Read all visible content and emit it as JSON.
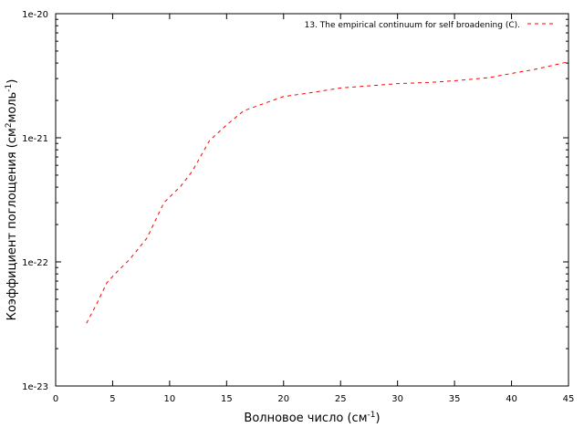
{
  "chart_data": {
    "type": "line",
    "title": "",
    "xlabel": {
      "text": "Волновое число (см",
      "sup": "-1",
      "suffix": ")"
    },
    "ylabel": {
      "text": "Коэффициент поглощения (см",
      "sup1": "2",
      "mid": "моль",
      "sup2": "-1",
      "suffix": ")"
    },
    "xlim": [
      0,
      45
    ],
    "ylim": [
      1e-23,
      1e-20
    ],
    "yscale": "log",
    "grid": false,
    "legend_position": "top-right",
    "x_ticks": [
      0,
      5,
      10,
      15,
      20,
      25,
      30,
      35,
      40,
      45
    ],
    "x_tick_labels": [
      "0",
      "5",
      "10",
      "15",
      "20",
      "25",
      "30",
      "35",
      "40",
      "45"
    ],
    "y_ticks": [
      1e-23,
      1e-22,
      1e-21,
      1e-20
    ],
    "y_tick_labels": [
      "1e-23",
      "1e-22",
      "1e-21",
      "1e-20"
    ],
    "series": [
      {
        "name": "13. The empirical continuum for self broadening (C).",
        "color": "#ff0000",
        "line_style": "dashed",
        "x": [
          2.7,
          3.5,
          4.5,
          5.2,
          6.5,
          8,
          9.5,
          11,
          12,
          13.5,
          15,
          16.5,
          18,
          20,
          22,
          25,
          27,
          30,
          33,
          35,
          38,
          40,
          42,
          45
        ],
        "y": [
          3.2e-23,
          4.4e-23,
          6.8e-23,
          8e-23,
          1.05e-22,
          1.55e-22,
          3e-22,
          4.1e-22,
          5.4e-22,
          9.5e-22,
          1.27e-21,
          1.65e-21,
          1.85e-21,
          2.15e-21,
          2.28e-21,
          2.52e-21,
          2.6e-21,
          2.73e-21,
          2.8e-21,
          2.88e-21,
          3.05e-21,
          3.3e-21,
          3.55e-21,
          4.1e-21
        ]
      }
    ]
  }
}
